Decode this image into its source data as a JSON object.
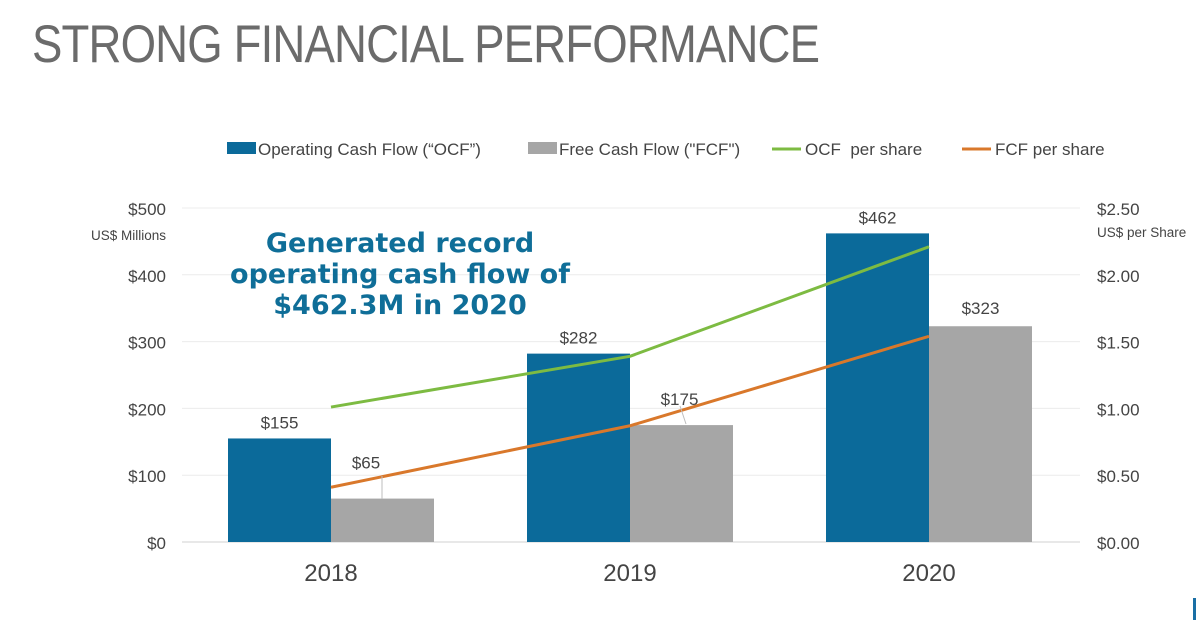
{
  "title": "STRONG FINANCIAL PERFORMANCE",
  "callout": {
    "lines": [
      "Generated record",
      "operating cash flow of",
      "$462.3M in 2020"
    ]
  },
  "colors": {
    "ocf_bar": "#0b6a9a",
    "fcf_bar": "#a6a6a6",
    "ocf_line": "#7dbb42",
    "fcf_line": "#d9782b",
    "callout": "#0f6e98",
    "title": "#6b6b6b"
  },
  "chart_data": {
    "type": "bar",
    "categories": [
      "2018",
      "2019",
      "2020"
    ],
    "series": [
      {
        "name": "Operating Cash Flow (“OCF”)",
        "kind": "bar",
        "axis": "left",
        "values": [
          155,
          282,
          462
        ],
        "labels": [
          "$155",
          "$282",
          "$462"
        ]
      },
      {
        "name": "Free Cash Flow (\"FCF\")",
        "kind": "bar",
        "axis": "left",
        "values": [
          65,
          175,
          323
        ],
        "labels": [
          "$65",
          "$175",
          "$323"
        ]
      },
      {
        "name": "OCF  per share",
        "kind": "line",
        "axis": "right",
        "values": [
          1.01,
          1.39,
          2.21
        ]
      },
      {
        "name": "FCF per share",
        "kind": "line",
        "axis": "right",
        "values": [
          0.41,
          0.87,
          1.54
        ]
      }
    ],
    "left_axis": {
      "label": "US$ Millions",
      "ylim": [
        0,
        500
      ],
      "ticks": [
        0,
        100,
        200,
        300,
        400,
        500
      ],
      "tick_labels": [
        "$0",
        "$100",
        "$200",
        "$300",
        "$400",
        "$500"
      ]
    },
    "right_axis": {
      "label": "US$ per Share",
      "ylim": [
        0,
        2.5
      ],
      "ticks": [
        0,
        0.5,
        1,
        1.5,
        2,
        2.5
      ],
      "tick_labels": [
        "$0.00",
        "$0.50",
        "$1.00",
        "$1.50",
        "$2.00",
        "$2.50"
      ]
    },
    "grid": true,
    "legend_position": "top"
  }
}
